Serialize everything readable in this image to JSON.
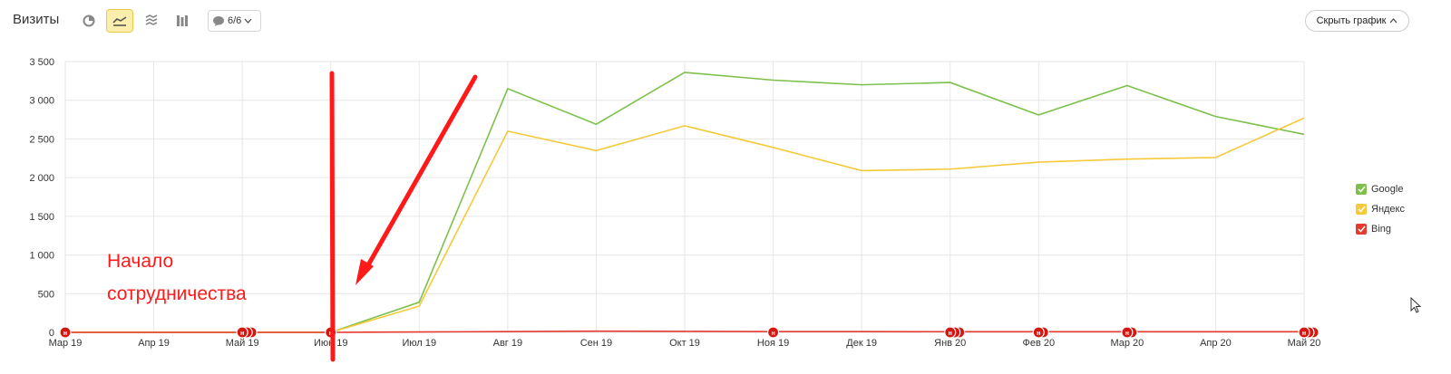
{
  "header": {
    "title": "Визиты",
    "notes_count": "6/6",
    "hide_chart_label": "Скрыть график"
  },
  "colors": {
    "google": "#7dc14b",
    "yandex": "#f5c93a",
    "bing": "#e63a2e",
    "annotation": "#ff1a1a"
  },
  "annotation": {
    "line1": "Начало",
    "line2": "сотрудничества"
  },
  "note_marker_label": "н",
  "chart_data": {
    "type": "line",
    "categories": [
      "Мар 19",
      "Апр 19",
      "Май 19",
      "Июн 19",
      "Июл 19",
      "Авг 19",
      "Сен 19",
      "Окт 19",
      "Ноя 19",
      "Дек 19",
      "Янв 20",
      "Фев 20",
      "Мар 20",
      "Апр 20",
      "Май 20"
    ],
    "ylim": [
      0,
      3500
    ],
    "yticks": [
      0,
      500,
      1000,
      1500,
      2000,
      2500,
      3000,
      3500
    ],
    "ytick_labels": [
      "0",
      "500",
      "1 000",
      "1 500",
      "2 000",
      "2 500",
      "3 000",
      "3 500"
    ],
    "grid": true,
    "legend_position": "right",
    "series": [
      {
        "name": "Google",
        "color": "#7dc14b",
        "values": [
          0,
          0,
          0,
          0,
          390,
          3150,
          2690,
          3360,
          3260,
          3200,
          3230,
          2810,
          3190,
          2790,
          2560
        ]
      },
      {
        "name": "Яндекс",
        "color": "#f5c93a",
        "values": [
          0,
          0,
          0,
          0,
          340,
          2600,
          2350,
          2670,
          2390,
          2090,
          2110,
          2200,
          2240,
          2260,
          2770
        ]
      },
      {
        "name": "Bing",
        "color": "#e63a2e",
        "values": [
          0,
          0,
          0,
          0,
          5,
          10,
          15,
          12,
          10,
          10,
          8,
          8,
          8,
          8,
          8
        ]
      }
    ],
    "note_markers": [
      {
        "category_index": 0,
        "count": 1
      },
      {
        "category_index": 2,
        "count": 3
      },
      {
        "category_index": 3,
        "count": 1
      },
      {
        "category_index": 8,
        "count": 1
      },
      {
        "category_index": 10,
        "count": 3
      },
      {
        "category_index": 11,
        "count": 2
      },
      {
        "category_index": 12,
        "count": 2
      },
      {
        "category_index": 14,
        "count": 3
      }
    ]
  }
}
